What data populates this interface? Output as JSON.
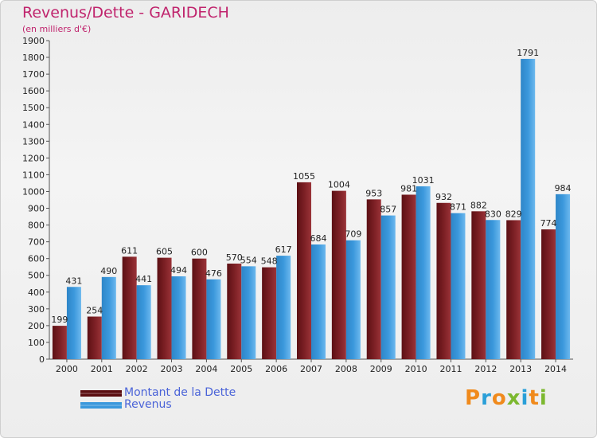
{
  "header": {
    "title": "Revenus/Dette - GARIDECH",
    "subtitle": "(en milliers d'€)"
  },
  "colors": {
    "debt_bar": "#7b1f24",
    "revenue_bar": "#3b98dc",
    "title": "#c0246d",
    "legend_text": "#4a63d8"
  },
  "legend": {
    "items": [
      {
        "label": "Montant de la Dette",
        "color": "#5a0d10"
      },
      {
        "label": "Revenus",
        "color": "#3b98dc"
      }
    ]
  },
  "logo": {
    "letters": [
      "P",
      "r",
      "o",
      "x",
      "i",
      "t",
      "i"
    ],
    "colors": [
      "#f08a1c",
      "#2a9fd8",
      "#f08a1c",
      "#7cb82f",
      "#2a9fd8",
      "#f08a1c",
      "#7cb82f"
    ]
  },
  "chart_data": {
    "type": "bar",
    "title": "Revenus/Dette - GARIDECH",
    "ylabel": "(en milliers d'€)",
    "xlabel": "",
    "ylim": [
      0,
      1900
    ],
    "ytick_step": 100,
    "grid": false,
    "legend_position": "bottom-left",
    "categories": [
      "2000",
      "2001",
      "2002",
      "2003",
      "2004",
      "2005",
      "2006",
      "2007",
      "2008",
      "2009",
      "2010",
      "2011",
      "2012",
      "2013",
      "2014"
    ],
    "series": [
      {
        "name": "Montant de la Dette",
        "values": [
          199,
          254,
          611,
          605,
          600,
          570,
          548,
          1055,
          1004,
          953,
          981,
          932,
          882,
          829,
          774
        ]
      },
      {
        "name": "Revenus",
        "values": [
          431,
          490,
          441,
          494,
          476,
          554,
          617,
          684,
          709,
          857,
          1031,
          871,
          830,
          1791,
          984
        ]
      }
    ]
  }
}
